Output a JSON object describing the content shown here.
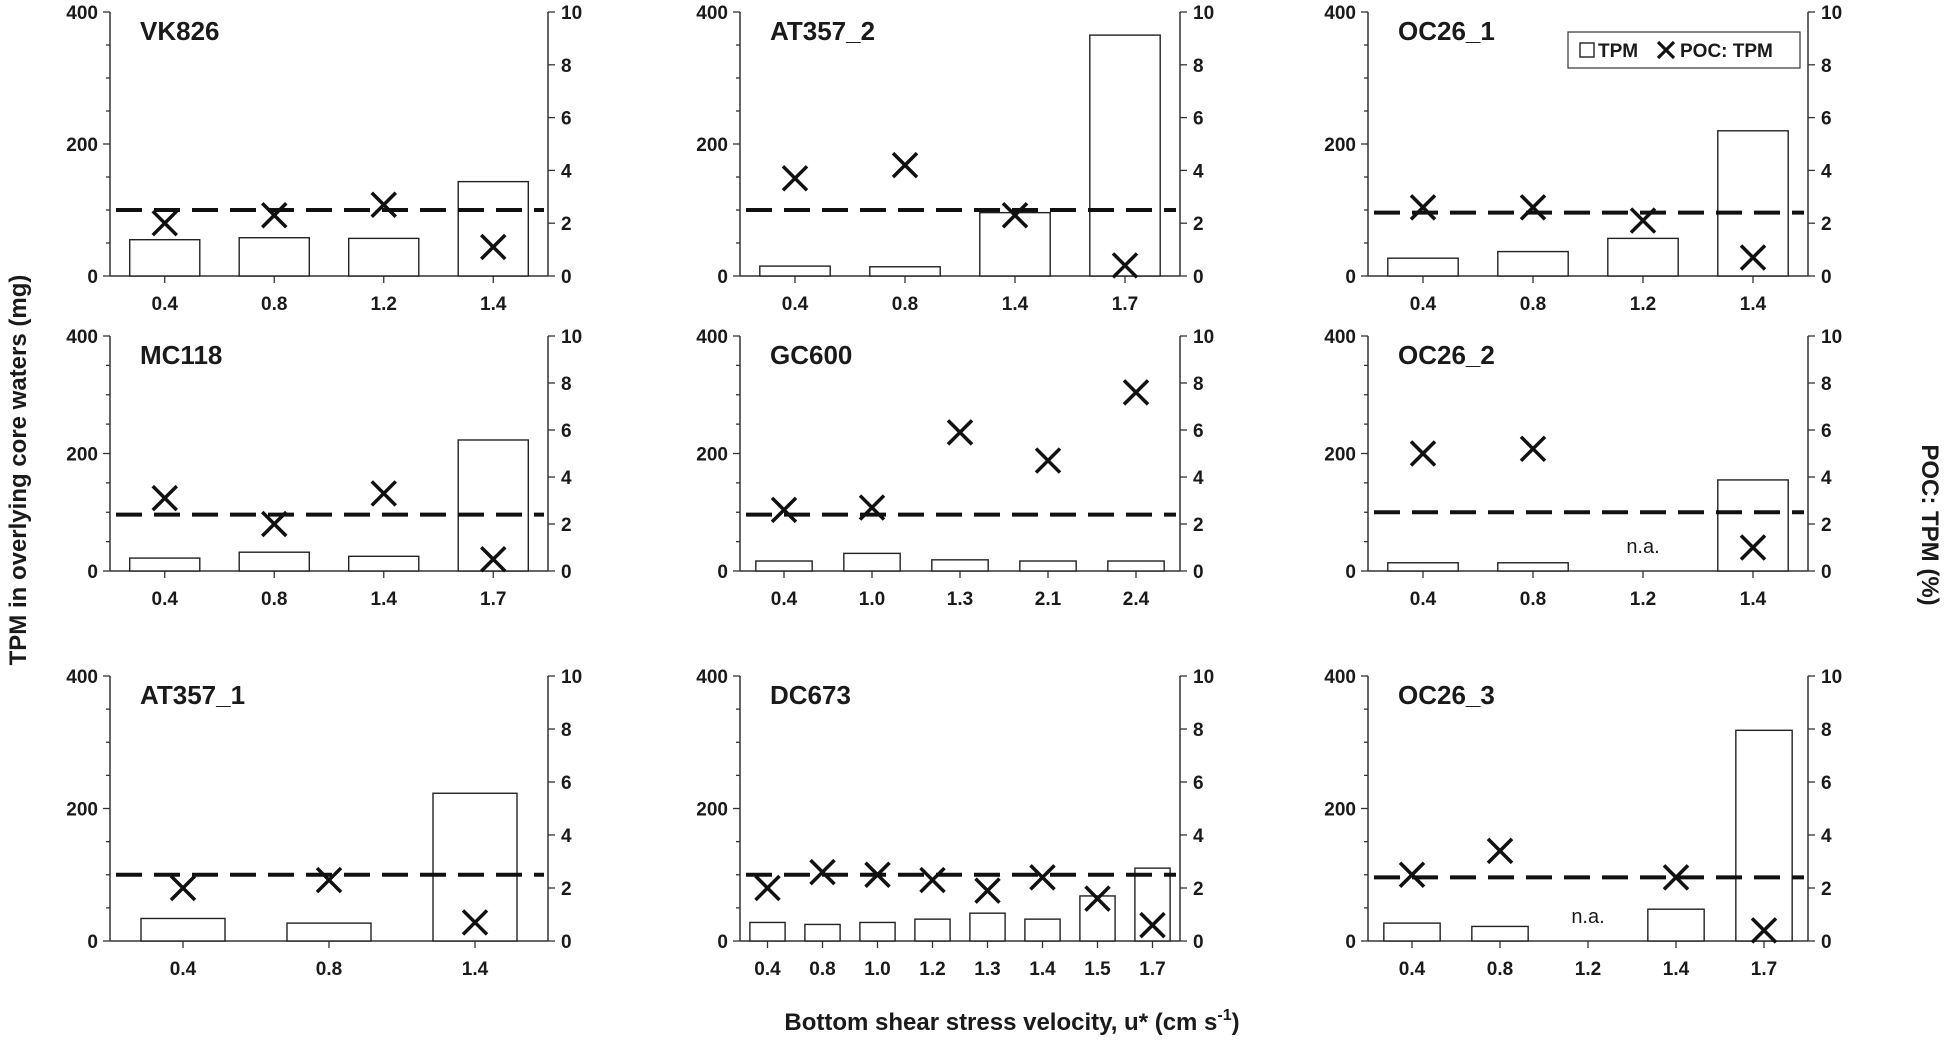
{
  "figure": {
    "ylabel_left": "TPM in overlying core waters  (mg)",
    "ylabel_right": "POC: TPM (%)",
    "xlabel": "Bottom shear stress velocity, u* (cm s",
    "xlabel_sup": "-1",
    "xlabel_tail": ")",
    "legend": {
      "tpm": "TPM",
      "ratio": "POC: TPM"
    },
    "na_text": "n.a."
  },
  "chart_data": [
    {
      "type": "bar",
      "title": "VK826",
      "categories": [
        "0.4",
        "0.8",
        "1.2",
        "1.4"
      ],
      "series": [
        {
          "name": "TPM",
          "axis": "left",
          "values": [
            55,
            58,
            57,
            143
          ]
        },
        {
          "name": "POC: TPM",
          "axis": "right",
          "marker": "x",
          "values": [
            2.0,
            2.3,
            2.7,
            1.1
          ]
        }
      ],
      "reference_line": 2.5,
      "ylim_left": [
        0,
        400
      ],
      "ylim_right": [
        0,
        10
      ],
      "yticks_left": [
        0,
        200,
        400
      ],
      "yticks_right": [
        0,
        2,
        4,
        6,
        8,
        10
      ]
    },
    {
      "type": "bar",
      "title": "AT357_2",
      "categories": [
        "0.4",
        "0.8",
        "1.4",
        "1.7"
      ],
      "series": [
        {
          "name": "TPM",
          "axis": "left",
          "values": [
            15,
            14,
            96,
            365
          ]
        },
        {
          "name": "POC: TPM",
          "axis": "right",
          "marker": "x",
          "values": [
            3.7,
            4.2,
            2.3,
            0.4
          ]
        }
      ],
      "reference_line": 2.5,
      "ylim_left": [
        0,
        400
      ],
      "ylim_right": [
        0,
        10
      ],
      "yticks_left": [
        0,
        200,
        400
      ],
      "yticks_right": [
        0,
        2,
        4,
        6,
        8,
        10
      ]
    },
    {
      "type": "bar",
      "title": "OC26_1",
      "categories": [
        "0.4",
        "0.8",
        "1.2",
        "1.4"
      ],
      "legend": "top-right",
      "series": [
        {
          "name": "TPM",
          "axis": "left",
          "values": [
            27,
            37,
            57,
            220
          ]
        },
        {
          "name": "POC: TPM",
          "axis": "right",
          "marker": "x",
          "values": [
            2.6,
            2.6,
            2.1,
            0.7
          ]
        }
      ],
      "reference_line": 2.4,
      "ylim_left": [
        0,
        400
      ],
      "ylim_right": [
        0,
        10
      ],
      "yticks_left": [
        0,
        200,
        400
      ],
      "yticks_right": [
        0,
        2,
        4,
        6,
        8,
        10
      ]
    },
    {
      "type": "bar",
      "title": "MC118",
      "categories": [
        "0.4",
        "0.8",
        "1.4",
        "1.7"
      ],
      "series": [
        {
          "name": "TPM",
          "axis": "left",
          "values": [
            22,
            32,
            25,
            223
          ]
        },
        {
          "name": "POC: TPM",
          "axis": "right",
          "marker": "x",
          "values": [
            3.1,
            2.0,
            3.3,
            0.5
          ]
        }
      ],
      "reference_line": 2.4,
      "ylim_left": [
        0,
        400
      ],
      "ylim_right": [
        0,
        10
      ],
      "yticks_left": [
        0,
        200,
        400
      ],
      "yticks_right": [
        0,
        2,
        4,
        6,
        8,
        10
      ]
    },
    {
      "type": "bar",
      "title": "GC600",
      "categories": [
        "0.4",
        "1.0",
        "1.3",
        "2.1",
        "2.4"
      ],
      "series": [
        {
          "name": "TPM",
          "axis": "left",
          "values": [
            17,
            30,
            19,
            17,
            17
          ]
        },
        {
          "name": "POC: TPM",
          "axis": "right",
          "marker": "x",
          "values": [
            2.6,
            2.7,
            5.9,
            4.7,
            7.6
          ]
        }
      ],
      "reference_line": 2.4,
      "ylim_left": [
        0,
        400
      ],
      "ylim_right": [
        0,
        10
      ],
      "yticks_left": [
        0,
        200,
        400
      ],
      "yticks_right": [
        0,
        2,
        4,
        6,
        8,
        10
      ]
    },
    {
      "type": "bar",
      "title": "OC26_2",
      "categories": [
        "0.4",
        "0.8",
        "1.2",
        "1.4"
      ],
      "series": [
        {
          "name": "TPM",
          "axis": "left",
          "values": [
            14,
            14,
            null,
            155
          ]
        },
        {
          "name": "POC: TPM",
          "axis": "right",
          "marker": "x",
          "values": [
            5.0,
            5.2,
            null,
            1.0
          ]
        }
      ],
      "na_categories": [
        "1.2"
      ],
      "reference_line": 2.5,
      "ylim_left": [
        0,
        400
      ],
      "ylim_right": [
        0,
        10
      ],
      "yticks_left": [
        0,
        200,
        400
      ],
      "yticks_right": [
        0,
        2,
        4,
        6,
        8,
        10
      ]
    },
    {
      "type": "bar",
      "title": "AT357_1",
      "categories": [
        "0.4",
        "0.8",
        "1.4"
      ],
      "series": [
        {
          "name": "TPM",
          "axis": "left",
          "values": [
            34,
            27,
            223
          ]
        },
        {
          "name": "POC: TPM",
          "axis": "right",
          "marker": "x",
          "values": [
            2.0,
            2.3,
            0.7
          ]
        }
      ],
      "reference_line": 2.5,
      "ylim_left": [
        0,
        400
      ],
      "ylim_right": [
        0,
        10
      ],
      "yticks_left": [
        0,
        200,
        400
      ],
      "yticks_right": [
        0,
        2,
        4,
        6,
        8,
        10
      ]
    },
    {
      "type": "bar",
      "title": "DC673",
      "categories": [
        "0.4",
        "0.8",
        "1.0",
        "1.2",
        "1.3",
        "1.4",
        "1.5",
        "1.7"
      ],
      "series": [
        {
          "name": "TPM",
          "axis": "left",
          "values": [
            28,
            25,
            28,
            33,
            42,
            33,
            68,
            110
          ]
        },
        {
          "name": "POC: TPM",
          "axis": "right",
          "marker": "x",
          "values": [
            2.0,
            2.6,
            2.5,
            2.3,
            1.9,
            2.4,
            1.6,
            0.6
          ]
        }
      ],
      "reference_line": 2.5,
      "ylim_left": [
        0,
        400
      ],
      "ylim_right": [
        0,
        10
      ],
      "yticks_left": [
        0,
        200,
        400
      ],
      "yticks_right": [
        0,
        2,
        4,
        6,
        8,
        10
      ]
    },
    {
      "type": "bar",
      "title": "OC26_3",
      "categories": [
        "0.4",
        "0.8",
        "1.2",
        "1.4",
        "1.7"
      ],
      "series": [
        {
          "name": "TPM",
          "axis": "left",
          "values": [
            27,
            22,
            null,
            48,
            318
          ]
        },
        {
          "name": "POC: TPM",
          "axis": "right",
          "marker": "x",
          "values": [
            2.5,
            3.4,
            null,
            2.4,
            0.4
          ]
        }
      ],
      "na_categories": [
        "1.2"
      ],
      "reference_line": 2.4,
      "ylim_left": [
        0,
        400
      ],
      "ylim_right": [
        0,
        10
      ],
      "yticks_left": [
        0,
        200,
        400
      ],
      "yticks_right": [
        0,
        2,
        4,
        6,
        8,
        10
      ]
    }
  ]
}
